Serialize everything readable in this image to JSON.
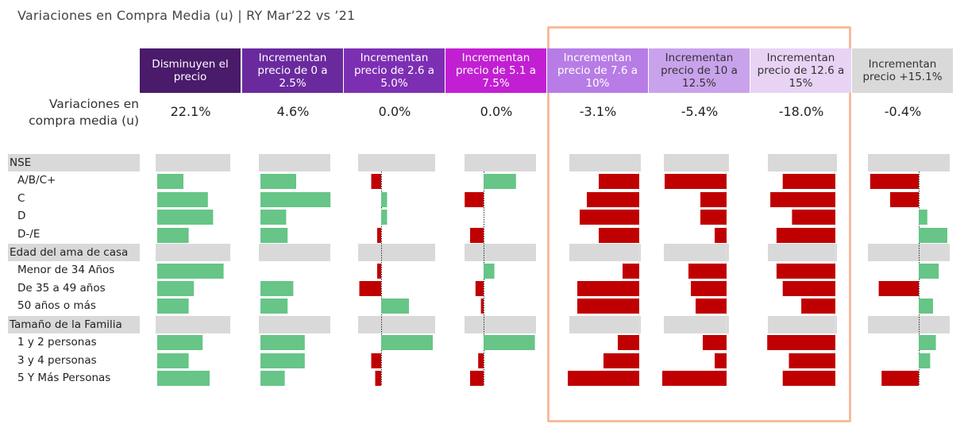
{
  "title": "Variaciones en Compra Media (u) |  RY Mar’22 vs ’21",
  "row_label": "Variaciones en compra media (u)",
  "colors": {
    "positive": "#66c587",
    "negative": "#c00000",
    "group_bg": "#d9d9d9",
    "highlight_border": "#f6bc9c",
    "headers": [
      "#4a1a6b",
      "#6a2a9e",
      "#7d2fb4",
      "#c21fd3",
      "#b77ce6",
      "#c9a2ec",
      "#e8d3f5",
      "#d9d9d9"
    ],
    "header_text": [
      "#ffffff",
      "#ffffff",
      "#ffffff",
      "#ffffff",
      "#ffffff",
      "#333333",
      "#333333",
      "#333333"
    ]
  },
  "columns": [
    {
      "label": "Disminuyen el precio",
      "total": "22.1%"
    },
    {
      "label": "Incrementan precio de 0 a 2.5%",
      "total": "4.6%"
    },
    {
      "label": "Incrementan precio de 2.6 a 5.0%",
      "total": "0.0%"
    },
    {
      "label": "Incrementan precio de 5.1 a 7.5%",
      "total": "0.0%"
    },
    {
      "label": "Incrementan precio de 7.6 a 10%",
      "total": "-3.1%"
    },
    {
      "label": "Incrementan precio de 10 a 12.5%",
      "total": "-5.4%"
    },
    {
      "label": "Incrementan precio de 12.6 a 15%",
      "total": "-18.0%"
    },
    {
      "label": "Incrementan precio +15.1%",
      "total": "-0.4%"
    }
  ],
  "groups": [
    {
      "label": "NSE",
      "rows": [
        "A/B/C+",
        "C",
        "D",
        "D-/E"
      ]
    },
    {
      "label": "Edad del ama de casa",
      "rows": [
        "Menor de 34 Años",
        "De 35 a 49 años",
        "50 años o más"
      ]
    },
    {
      "label": "Tamaño de la Familia",
      "rows": [
        "1 y 2 personas",
        "3 y 4 personas",
        "5 Y Más Personas"
      ]
    }
  ],
  "chart_data": {
    "type": "bar",
    "orientation": "horizontal",
    "note": "Small-multiples of relative variations; values are approximate relative magnitudes (units unlabeled)",
    "categories": [
      "A/B/C+",
      "C",
      "D",
      "D-/E",
      "Menor de 34 Años",
      "De 35 a 49 años",
      "50 años o más",
      "1 y 2 personas",
      "3 y 4 personas",
      "5 Y Más Personas"
    ],
    "series": [
      {
        "name": "Disminuyen el precio",
        "values": [
          15,
          29,
          32,
          18,
          38,
          21,
          18,
          26,
          18,
          30
        ]
      },
      {
        "name": "Incrementan precio de 0 a 2.5%",
        "values": [
          25,
          49,
          18,
          19,
          0,
          23,
          19,
          31,
          31,
          17
        ]
      },
      {
        "name": "Incrementan precio de 2.6 a 5.0%",
        "values": [
          -5,
          3,
          3,
          -2,
          -2,
          -11,
          14,
          26,
          -5,
          -3
        ]
      },
      {
        "name": "Incrementan precio de 5.1 a 7.5%",
        "values": [
          12,
          -7,
          0,
          -5,
          4,
          -3,
          -1,
          19,
          -2,
          -5
        ]
      },
      {
        "name": "Incrementan precio de 7.6 a 10%",
        "values": [
          -17,
          -22,
          -25,
          -17,
          -7,
          -26,
          -26,
          -9,
          -15,
          -30
        ]
      },
      {
        "name": "Incrementan precio de 10 a 12.5%",
        "values": [
          -26,
          -11,
          -11,
          -5,
          -16,
          -15,
          -13,
          -10,
          -5,
          -27
        ]
      },
      {
        "name": "Incrementan precio de 12.6 a 15%",
        "values": [
          -17,
          -21,
          -14,
          -19,
          -19,
          -17,
          -11,
          -22,
          -15,
          -17
        ]
      },
      {
        "name": "Incrementan precio +15.1%",
        "values": [
          -17,
          -10,
          3,
          10,
          7,
          -14,
          5,
          6,
          4,
          -13
        ]
      }
    ]
  }
}
